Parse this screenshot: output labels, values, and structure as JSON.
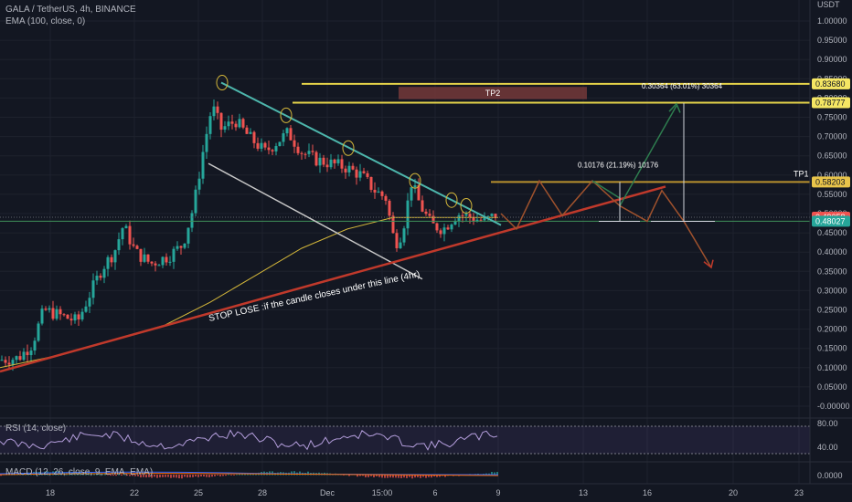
{
  "header": {
    "symbol_line": "GALA / TetherUS, 4h, BINANCE",
    "ema_line": "EMA (100, close, 0)",
    "rsi_line": "RSI (14, close)",
    "macd_line": "MACD (12, 26, close, 9, EMA, EMA)"
  },
  "colors": {
    "background": "#131722",
    "up": "#26a69a",
    "down": "#ef5350",
    "ema": "#d4b73a",
    "support": "#c0392b",
    "resistance": "#4db6ac",
    "channel": "#c8c8c8",
    "target_line": "#e6d44a",
    "tp1_line": "#b8912e",
    "projection": "#a0522d",
    "bull_path": "#2e7d4f",
    "bear_path": "#c0392b",
    "price_badge": "#ef5350",
    "ema_badge": "#26a69a",
    "tp2_box": "#7a3b3b"
  },
  "chart_data": {
    "type": "candlestick",
    "xaxis": {
      "ticks": [
        "18",
        "22",
        "25",
        "28",
        "Dec",
        "15:00",
        "6",
        "9",
        "13",
        "16",
        "20",
        "23"
      ]
    },
    "yaxis": {
      "unit": "USDT",
      "range": [
        -0.02,
        1.05
      ],
      "ticks": [
        "1.00000",
        "0.95000",
        "0.90000",
        "0.85000",
        "0.80000",
        "0.75000",
        "0.70000",
        "0.65000",
        "0.60000",
        "0.55000",
        "0.50000",
        "0.45000",
        "0.40000",
        "0.35000",
        "0.30000",
        "0.25000",
        "0.20000",
        "0.15000",
        "0.10000",
        "0.05000",
        "-0.00000"
      ]
    },
    "price_levels": [
      {
        "label": "0.83680",
        "value": 0.8368
      },
      {
        "label": "0.78777",
        "value": 0.78777
      },
      {
        "label": "0.58203",
        "value": 0.58203
      }
    ],
    "current_price": {
      "label": "0.49058",
      "value": 0.49058
    },
    "ema_value": {
      "label": "0.48027",
      "value": 0.48027
    },
    "annotations": {
      "tp1": "TP1",
      "tp2": "TP2",
      "measure_small": "0.10176 (21.19%) 10176",
      "measure_large": "0.30364 (63.01%) 30364",
      "stop_loss": "STOP LOSE :if the candle closes under this line (4hr)"
    },
    "rsi": {
      "ticks": [
        "80.00",
        "40.00"
      ]
    },
    "macd": {
      "ticks": [
        "0.0000"
      ]
    }
  }
}
